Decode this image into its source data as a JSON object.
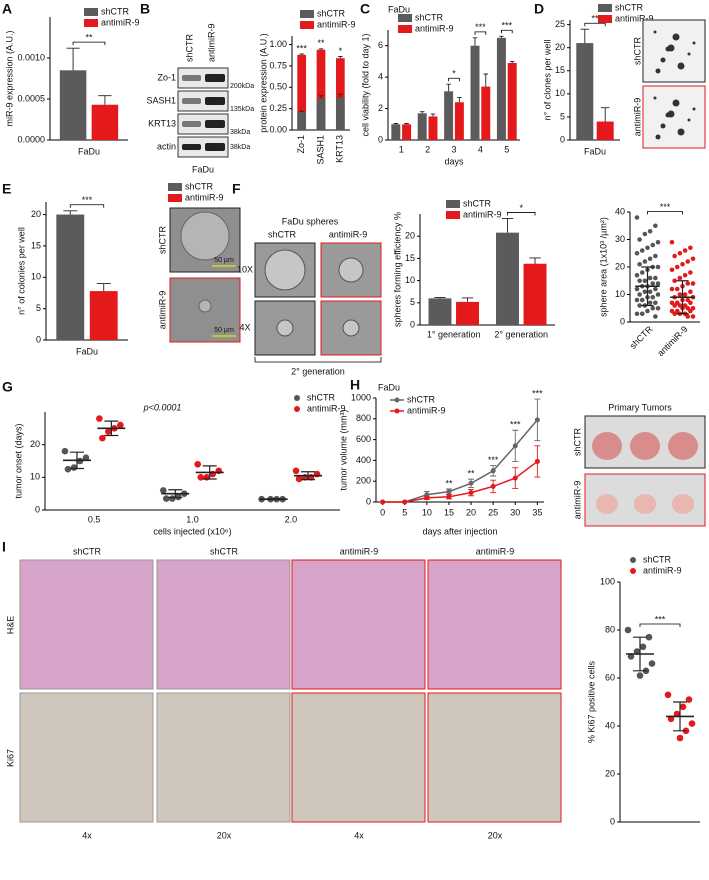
{
  "chart_data": [
    {
      "panel": "A",
      "type": "bar",
      "ylabel": "miR-9 expression (A.U.)",
      "categories": [
        "FaDu"
      ],
      "series": [
        {
          "name": "shCTR",
          "color": "#5b5b5b",
          "values": [
            0.00085
          ],
          "errors": [
            0.00027
          ]
        },
        {
          "name": "antimiR-9",
          "color": "#e3191c",
          "values": [
            0.00043
          ],
          "errors": [
            0.00011
          ]
        }
      ],
      "ylim": [
        0,
        0.0015
      ],
      "yticks": [
        {
          "value": 0,
          "label": "0.0000"
        },
        {
          "value": 0.0005,
          "label": "0.0005"
        },
        {
          "value": 0.001,
          "label": "0.0010"
        }
      ],
      "annotations": [
        {
          "text": "**",
          "at": "FaDu"
        }
      ],
      "legend": "upper right"
    },
    {
      "type": "bar",
      "overlap": true,
      "xtick_rotation": 90,
      "ylabel": "protein expression (A.U.)",
      "categories": [
        "Zo-1",
        "SASH1",
        "KRT13"
      ],
      "series": [
        {
          "name": "shCTR",
          "color": "#5b5b5b",
          "values": [
            0.21,
            0.37,
            0.38
          ],
          "errors": [
            0.01,
            0.03,
            0.04
          ]
        },
        {
          "name": "antimiR-9",
          "color": "#e3191c",
          "values": [
            0.88,
            0.94,
            0.84
          ],
          "errors": [
            0.01,
            0.01,
            0.02
          ]
        }
      ],
      "ylim": [
        0,
        1.1
      ],
      "yticks": [
        {
          "value": 0,
          "label": "0.00"
        },
        {
          "value": 0.25,
          "label": "0.25"
        },
        {
          "value": 0.5,
          "label": "0.50"
        },
        {
          "value": 0.75,
          "label": "0.75"
        },
        {
          "value": 1,
          "label": "1.00"
        }
      ],
      "annotations": [
        {
          "text": "***",
          "at": "Zo-1"
        },
        {
          "text": "**",
          "at": "SASH1"
        },
        {
          "text": "*",
          "at": "KRT13"
        }
      ],
      "legend": "upper right"
    },
    {
      "panel": "C",
      "type": "bar",
      "title": "FaDu",
      "ylabel": "cell viability (fold to day 1)",
      "xlabel": "days",
      "categories": [
        "1",
        "2",
        "3",
        "4",
        "5"
      ],
      "series": [
        {
          "name": "shCTR",
          "color": "#5b5b5b",
          "values": [
            1.0,
            1.7,
            3.1,
            6.0,
            6.5
          ],
          "errors": [
            0.05,
            0.1,
            0.45,
            0.5,
            0.1
          ]
        },
        {
          "name": "antimiR-9",
          "color": "#e3191c",
          "values": [
            1.0,
            1.5,
            2.4,
            3.4,
            4.9
          ],
          "errors": [
            0.05,
            0.15,
            0.3,
            0.8,
            0.1
          ]
        }
      ],
      "ylim": [
        0,
        7
      ],
      "yticks": [
        0,
        2,
        4,
        6
      ],
      "annotations": [
        {
          "text": "*",
          "at": "3"
        },
        {
          "text": "***",
          "at": "4"
        },
        {
          "text": "***",
          "at": "5"
        }
      ],
      "legend": "upper left"
    },
    {
      "panel": "D",
      "type": "bar",
      "ylabel": "n° of clones per well",
      "categories": [
        "FaDu"
      ],
      "series": [
        {
          "name": "shCTR",
          "color": "#5b5b5b",
          "values": [
            21
          ],
          "errors": [
            3
          ]
        },
        {
          "name": "antimiR-9",
          "color": "#e3191c",
          "values": [
            4
          ],
          "errors": [
            3
          ]
        }
      ],
      "ylim": [
        0,
        26
      ],
      "yticks": [
        0,
        5,
        10,
        15,
        20,
        25
      ],
      "annotations": [
        {
          "text": "**",
          "at": "FaDu"
        }
      ],
      "legend": "upper right"
    },
    {
      "panel": "E",
      "type": "bar",
      "ylabel": "n° of colonies per well",
      "categories": [
        "FaDu"
      ],
      "series": [
        {
          "name": "shCTR",
          "color": "#5b5b5b",
          "values": [
            20
          ],
          "errors": [
            0.6
          ]
        },
        {
          "name": "antimiR-9",
          "color": "#e3191c",
          "values": [
            7.8
          ],
          "errors": [
            1.2
          ]
        }
      ],
      "ylim": [
        0,
        22
      ],
      "yticks": [
        0,
        5,
        10,
        15,
        20
      ],
      "annotations": [
        {
          "text": "***",
          "at": "FaDu"
        }
      ],
      "legend": "upper right"
    },
    {
      "type": "bar",
      "ylabel": "spheres forming efficiency %",
      "categories": [
        "1° generation",
        "2° generation"
      ],
      "series": [
        {
          "name": "shCTR",
          "color": "#5b5b5b",
          "values": [
            6.0,
            20.8
          ],
          "errors": [
            0.2,
            3.2
          ]
        },
        {
          "name": "antimiR-9",
          "color": "#e3191c",
          "values": [
            5.2,
            13.8
          ],
          "errors": [
            0.9,
            1.3
          ]
        }
      ],
      "ylim": [
        0,
        25
      ],
      "yticks": [
        0,
        5,
        10,
        15,
        20
      ],
      "annotations": [
        {
          "text": "*",
          "at": "2° generation"
        }
      ],
      "legend": "upper left"
    },
    {
      "type": "dot",
      "xtick_rotation": 45,
      "ylabel": "sphere area (1x10³ /µm²)",
      "categories": [
        "shCTR",
        "antimiR-9"
      ],
      "colors": [
        "#555555",
        "#e3191c"
      ],
      "values": [
        [
          38,
          35,
          33,
          32,
          30,
          29,
          28,
          27,
          26,
          25,
          24,
          23,
          22,
          21,
          20,
          20,
          19,
          18,
          17,
          16,
          16,
          15,
          15,
          14,
          14,
          13,
          13,
          12,
          12,
          11,
          11,
          10,
          10,
          9,
          9,
          8,
          8,
          7,
          7,
          6,
          6,
          5,
          5,
          4,
          3,
          3,
          2
        ],
        [
          29,
          27,
          26,
          25,
          24,
          23,
          22,
          21,
          20,
          19,
          18,
          17,
          16,
          15,
          14,
          14,
          13,
          12,
          12,
          11,
          10,
          10,
          9,
          9,
          8,
          8,
          7,
          7,
          7,
          6,
          6,
          6,
          5,
          5,
          5,
          4,
          4,
          4,
          3,
          3,
          3,
          2,
          2
        ]
      ],
      "means": [
        13,
        9
      ],
      "sds": [
        7,
        6
      ],
      "ylim": [
        0,
        40
      ],
      "yticks": [
        0,
        10,
        20,
        30,
        40
      ],
      "annotations": [
        {
          "text": "***"
        }
      ]
    },
    {
      "panel": "G",
      "type": "dot",
      "ylabel": "tumor onset (days)",
      "xlabel": "cells injected (x10⁶)",
      "note": "p<0.0001",
      "categories": [
        "0.5",
        "1.0",
        "2.0"
      ],
      "series": [
        {
          "name": "shCTR",
          "color": "#555555",
          "values": [
            [
              18,
              16,
              15,
              13,
              12.5
            ],
            [
              6,
              5,
              4,
              3.5,
              3.5
            ],
            [
              3.3,
              3.3,
              3.3,
              3.3
            ]
          ],
          "mean": [
            15.2,
            5,
            3.3
          ],
          "sd": [
            2.5,
            1.2,
            0.1
          ]
        },
        {
          "name": "antimiR-9",
          "color": "#e3191c",
          "values": [
            [
              28,
              26,
              25,
              24,
              22
            ],
            [
              14,
              12,
              11,
              10,
              10
            ],
            [
              12,
              11,
              10,
              10,
              9.5
            ]
          ],
          "mean": [
            25,
            11.5,
            10.5
          ],
          "sd": [
            2.2,
            2,
            1.2
          ]
        }
      ],
      "ylim": [
        0,
        30
      ],
      "yticks": [
        0,
        10,
        20
      ],
      "legend": "upper right"
    },
    {
      "panel": "H",
      "type": "line",
      "title": "FaDu",
      "ylabel": "tumor volume (mm³)",
      "xlabel": "days after injection",
      "x": [
        0,
        5,
        10,
        15,
        20,
        25,
        30,
        35
      ],
      "xlim": [
        -1.5,
        36.5
      ],
      "xticks": [
        0,
        5,
        10,
        15,
        20,
        25,
        30,
        35
      ],
      "series": [
        {
          "name": "shCTR",
          "color": "#666666",
          "values": [
            0,
            0,
            70,
            100,
            180,
            300,
            540,
            790
          ],
          "errors": [
            0,
            0,
            30,
            25,
            40,
            50,
            150,
            200
          ]
        },
        {
          "name": "antimiR-9",
          "color": "#e3191c",
          "values": [
            0,
            0,
            40,
            50,
            90,
            150,
            230,
            390
          ],
          "errors": [
            0,
            0,
            15,
            20,
            30,
            60,
            100,
            150
          ]
        }
      ],
      "ylim": [
        0,
        1000
      ],
      "yticks": [
        0,
        200,
        400,
        600,
        800,
        1000
      ],
      "annotations": [
        {
          "text": "**",
          "at": 15
        },
        {
          "text": "**",
          "at": 20
        },
        {
          "text": "***",
          "at": 25
        },
        {
          "text": "***",
          "at": 30
        },
        {
          "text": "***",
          "at": 35
        }
      ],
      "legend": "upper left"
    },
    {
      "type": "dot",
      "ylabel": "% Ki67 positive cells",
      "series": [
        {
          "name": "shCTR",
          "color": "#555555",
          "values": [
            [
              80,
              77,
              73,
              71,
              69,
              66,
              63,
              61
            ]
          ],
          "mean": [
            70
          ],
          "sd": [
            7
          ]
        },
        {
          "name": "antimiR-9",
          "color": "#e3191c",
          "values": [
            [
              53,
              51,
              48,
              45,
              43,
              41,
              38,
              35
            ]
          ],
          "mean": [
            44
          ],
          "sd": [
            6
          ]
        }
      ],
      "ylim": [
        0,
        100
      ],
      "yticks": [
        0,
        20,
        40,
        60,
        80,
        100
      ],
      "annotations": [
        {
          "text": "***"
        }
      ],
      "legend": "upper right"
    }
  ],
  "images": {
    "B": {
      "panel": "B",
      "columns": [
        "shCTR",
        "antimiR-9"
      ],
      "rows": [
        "Zo-1",
        "SASH1",
        "KRT13",
        "actin"
      ],
      "sizes": [
        "200kDa",
        "135kDa",
        "38kDa",
        "38kDa"
      ],
      "cell": "FaDu"
    },
    "D": {
      "rows": [
        "shCTR",
        "antimiR-9"
      ]
    },
    "E": {
      "rows": [
        "shCTR",
        "antimiR-9"
      ],
      "scale": [
        "50 µm",
        "50 µm"
      ]
    },
    "F": {
      "panel": "F",
      "title": "FaDu spheres",
      "columns": [
        "shCTR",
        "antimiR-9"
      ],
      "rows": [
        "10X",
        "4X"
      ],
      "caption": "2° generation"
    },
    "H": {
      "title": "Primary Tumors",
      "rows": [
        "shCTR",
        "antimiR-9"
      ]
    },
    "I": {
      "panel": "I",
      "columns": [
        "shCTR",
        "shCTR",
        "antimiR-9",
        "antimiR-9"
      ],
      "rows": [
        "H&E",
        "Ki67"
      ],
      "magnifications": [
        "4x",
        "20x",
        "4x",
        "20x"
      ]
    }
  }
}
